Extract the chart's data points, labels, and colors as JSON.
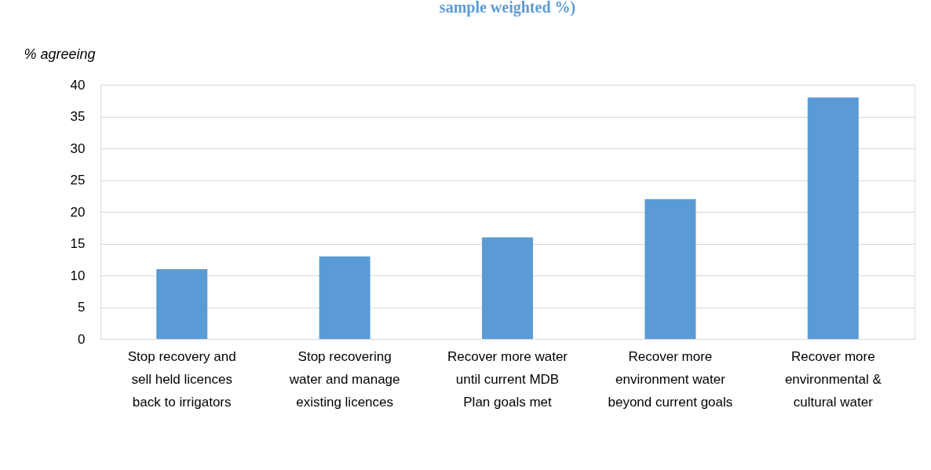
{
  "chart_data": {
    "type": "bar",
    "title": "sample weighted %)",
    "ylabel": "% agreeing",
    "categories": [
      "Stop recovery and sell held licences back to irrigators",
      "Stop recovering water and manage existing licences",
      "Recover more water until current MDB Plan goals met",
      "Recover more environment water beyond current goals",
      "Recover more environmental & cultural water"
    ],
    "values": [
      11,
      13,
      16,
      22,
      38
    ],
    "color": "#5b9bd5",
    "ylim": [
      0,
      40
    ],
    "yticks": [
      0,
      5,
      10,
      15,
      20,
      25,
      30,
      35,
      40
    ],
    "grid": "y"
  }
}
